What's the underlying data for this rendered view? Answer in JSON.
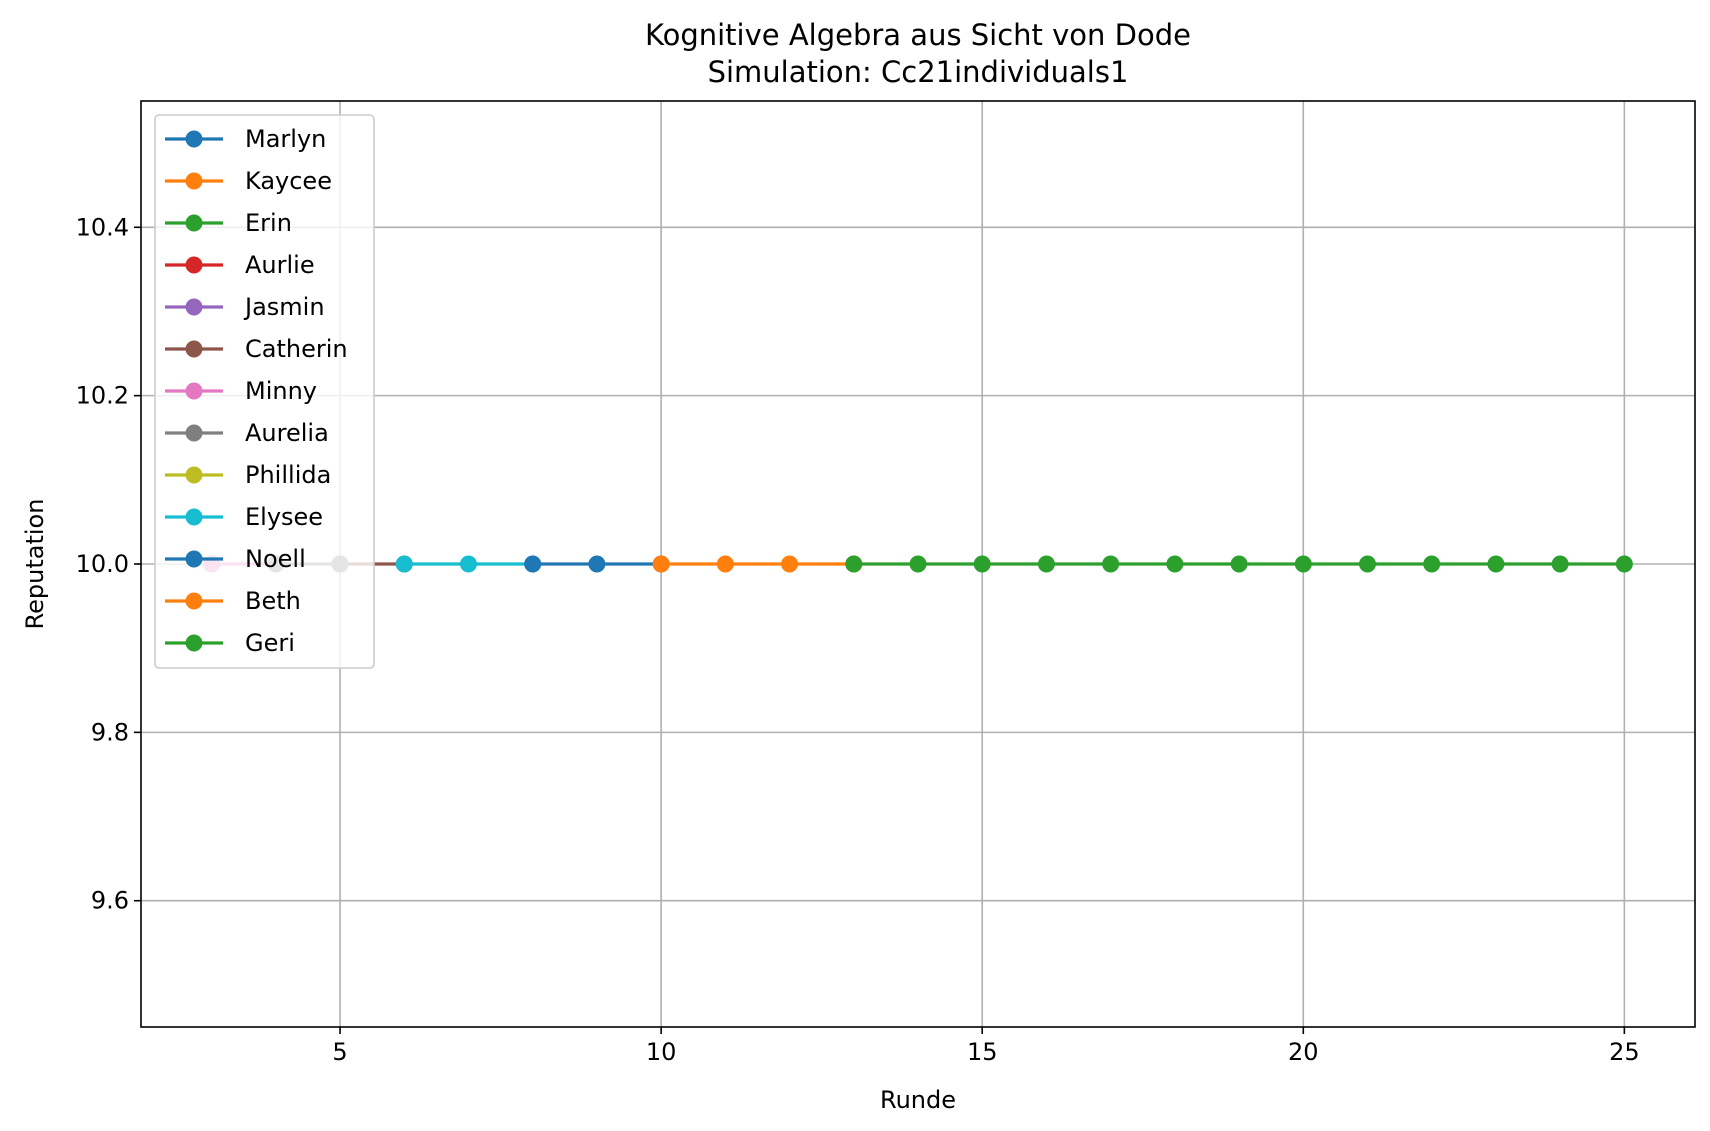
{
  "chart_data": {
    "type": "line",
    "title": "Kognitive Algebra aus Sicht von Dode",
    "subtitle": "Simulation: Cc21individuals1",
    "xlabel": "Runde",
    "ylabel": "Reputation",
    "xlim": [
      1.9,
      26.1
    ],
    "ylim": [
      9.45,
      10.55
    ],
    "xticks": [
      5,
      10,
      15,
      20,
      25
    ],
    "yticks": [
      9.6,
      9.8,
      10.0,
      10.2,
      10.4
    ],
    "ytick_labels": [
      "9.6",
      "9.8",
      "10.0",
      "10.2",
      "10.4"
    ],
    "grid": true,
    "legend_position": "upper-left",
    "series": [
      {
        "name": "Marlyn",
        "color": "#1f77b4",
        "x": [],
        "y": []
      },
      {
        "name": "Kaycee",
        "color": "#ff7f0e",
        "x": [],
        "y": []
      },
      {
        "name": "Erin",
        "color": "#2ca02c",
        "x": [],
        "y": []
      },
      {
        "name": "Aurlie",
        "color": "#d62728",
        "x": [],
        "y": []
      },
      {
        "name": "Jasmin",
        "color": "#9467bd",
        "x": [
          3,
          4
        ],
        "y": [
          10.0,
          10.0
        ]
      },
      {
        "name": "Catherin",
        "color": "#8c564b",
        "x": [
          5,
          6
        ],
        "y": [
          10.0,
          10.0
        ]
      },
      {
        "name": "Minny",
        "color": "#e377c2",
        "x": [
          3,
          4
        ],
        "y": [
          10.0,
          10.0
        ]
      },
      {
        "name": "Aurelia",
        "color": "#7f7f7f",
        "x": [
          4,
          5
        ],
        "y": [
          10.0,
          10.0
        ]
      },
      {
        "name": "Phillida",
        "color": "#bcbd22",
        "x": [],
        "y": []
      },
      {
        "name": "Elysee",
        "color": "#17becf",
        "x": [
          6,
          7,
          8
        ],
        "y": [
          10.0,
          10.0,
          10.0
        ]
      },
      {
        "name": "Noell",
        "color": "#1f77b4",
        "x": [
          8,
          9,
          10
        ],
        "y": [
          10.0,
          10.0,
          10.0
        ]
      },
      {
        "name": "Beth",
        "color": "#ff7f0e",
        "x": [
          10,
          11,
          12,
          13
        ],
        "y": [
          10.0,
          10.0,
          10.0,
          10.0
        ]
      },
      {
        "name": "Geri",
        "color": "#2ca02c",
        "x": [
          13,
          14,
          15,
          16,
          17,
          18,
          19,
          20,
          21,
          22,
          23,
          24,
          25
        ],
        "y": [
          10.0,
          10.0,
          10.0,
          10.0,
          10.0,
          10.0,
          10.0,
          10.0,
          10.0,
          10.0,
          10.0,
          10.0,
          10.0
        ]
      }
    ]
  }
}
